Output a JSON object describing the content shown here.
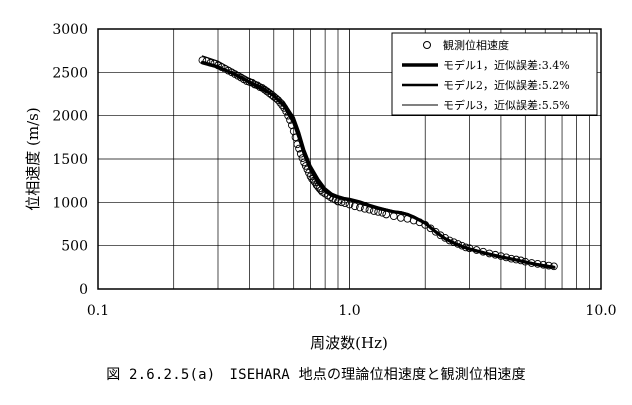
{
  "chart_data": {
    "type": "line",
    "xlabel": "周波数(Hz)",
    "ylabel": "位相速度 (m/s)",
    "xscale": "log",
    "xlim": [
      0.1,
      10.0
    ],
    "ylim": [
      0,
      3000
    ],
    "xticks": [
      "0.1",
      "1.0",
      "10.0"
    ],
    "yticks": [
      "0",
      "500",
      "1000",
      "1500",
      "2000",
      "2500",
      "3000"
    ],
    "grid": true,
    "legend_position": "top-right",
    "series": [
      {
        "name": "観測位相速度",
        "style": "markers",
        "x": [
          0.26,
          0.27,
          0.28,
          0.29,
          0.3,
          0.31,
          0.32,
          0.33,
          0.34,
          0.35,
          0.36,
          0.37,
          0.38,
          0.39,
          0.4,
          0.41,
          0.42,
          0.43,
          0.44,
          0.45,
          0.46,
          0.47,
          0.48,
          0.49,
          0.5,
          0.51,
          0.52,
          0.53,
          0.54,
          0.55,
          0.56,
          0.57,
          0.58,
          0.59,
          0.6,
          0.61,
          0.62,
          0.63,
          0.64,
          0.65,
          0.66,
          0.67,
          0.68,
          0.69,
          0.7,
          0.71,
          0.72,
          0.73,
          0.74,
          0.75,
          0.76,
          0.77,
          0.78,
          0.8,
          0.82,
          0.84,
          0.86,
          0.88,
          0.9,
          0.93,
          0.96,
          1.0,
          1.05,
          1.1,
          1.15,
          1.2,
          1.25,
          1.3,
          1.35,
          1.4,
          1.5,
          1.6,
          1.7,
          1.8,
          1.9,
          2.0,
          2.1,
          2.2,
          2.3,
          2.4,
          2.5,
          2.6,
          2.7,
          2.8,
          2.9,
          3.0,
          3.2,
          3.4,
          3.6,
          3.8,
          4.0,
          4.2,
          4.4,
          4.6,
          4.8,
          5.0,
          5.3,
          5.6,
          5.9,
          6.2,
          6.5
        ],
        "y": [
          2640,
          2630,
          2610,
          2600,
          2580,
          2560,
          2540,
          2520,
          2500,
          2480,
          2460,
          2440,
          2420,
          2400,
          2390,
          2380,
          2360,
          2350,
          2330,
          2320,
          2300,
          2280,
          2260,
          2240,
          2220,
          2200,
          2180,
          2150,
          2120,
          2090,
          2050,
          2000,
          1950,
          1890,
          1820,
          1750,
          1670,
          1620,
          1560,
          1510,
          1460,
          1420,
          1380,
          1340,
          1300,
          1270,
          1250,
          1230,
          1200,
          1180,
          1160,
          1140,
          1120,
          1100,
          1080,
          1060,
          1040,
          1030,
          1010,
          1000,
          990,
          975,
          955,
          940,
          925,
          915,
          900,
          890,
          880,
          860,
          840,
          820,
          810,
          790,
          770,
          740,
          700,
          660,
          620,
          590,
          560,
          540,
          520,
          500,
          480,
          470,
          450,
          430,
          410,
          395,
          380,
          365,
          350,
          340,
          330,
          315,
          300,
          290,
          280,
          270,
          262
        ]
      },
      {
        "name": "モデル1，近似誤差:3.4%",
        "style": "thick",
        "x": [
          0.26,
          0.3,
          0.35,
          0.4,
          0.45,
          0.5,
          0.55,
          0.6,
          0.63,
          0.66,
          0.7,
          0.75,
          0.8,
          0.85,
          0.9,
          0.95,
          1.0,
          1.1,
          1.2,
          1.3,
          1.4,
          1.5,
          1.6,
          1.7,
          1.8,
          2.0,
          2.2,
          2.4,
          2.6,
          2.8,
          3.0,
          3.5,
          4.0,
          4.5,
          5.0,
          5.5,
          6.0,
          6.5
        ],
        "y": [
          2610,
          2560,
          2480,
          2390,
          2320,
          2230,
          2110,
          1920,
          1750,
          1560,
          1380,
          1230,
          1130,
          1080,
          1060,
          1040,
          1030,
          1000,
          960,
          930,
          910,
          890,
          880,
          860,
          830,
          760,
          660,
          580,
          530,
          490,
          460,
          410,
          370,
          340,
          310,
          285,
          265,
          250
        ]
      },
      {
        "name": "モデル2，近似誤差:5.2%",
        "style": "thick",
        "x": [
          0.26,
          0.3,
          0.35,
          0.4,
          0.45,
          0.5,
          0.55,
          0.6,
          0.63,
          0.66,
          0.7,
          0.75,
          0.8,
          0.85,
          0.9,
          0.95,
          1.0,
          1.1,
          1.2,
          1.3,
          1.4,
          1.5,
          1.6,
          1.7,
          1.8,
          2.0,
          2.2,
          2.4,
          2.6,
          2.8,
          3.0,
          3.5,
          4.0,
          4.5,
          5.0,
          5.5,
          6.0,
          6.5
        ],
        "y": [
          2620,
          2570,
          2470,
          2380,
          2300,
          2230,
          2130,
          1980,
          1810,
          1610,
          1420,
          1270,
          1160,
          1100,
          1070,
          1050,
          1040,
          1010,
          970,
          940,
          915,
          895,
          885,
          865,
          835,
          765,
          665,
          585,
          535,
          495,
          465,
          415,
          375,
          345,
          315,
          290,
          270,
          255
        ]
      },
      {
        "name": "モデル3，近似誤差:5.5%",
        "style": "thin",
        "x": [
          0.26,
          0.3,
          0.35,
          0.4,
          0.45,
          0.5,
          0.55,
          0.6,
          0.63,
          0.66,
          0.7,
          0.75,
          0.8,
          0.85,
          0.9,
          0.95,
          1.0,
          1.1,
          1.2,
          1.3,
          1.4,
          1.5,
          1.6,
          1.7,
          1.8,
          2.0,
          2.2,
          2.4,
          2.6,
          2.8,
          3.0,
          3.5,
          4.0,
          4.5,
          5.0,
          5.5,
          6.0,
          6.5
        ],
        "y": [
          2690,
          2630,
          2520,
          2430,
          2350,
          2270,
          2160,
          1990,
          1800,
          1590,
          1410,
          1260,
          1150,
          1090,
          1070,
          1050,
          1035,
          1005,
          965,
          935,
          912,
          892,
          882,
          862,
          832,
          762,
          662,
          582,
          532,
          492,
          462,
          412,
          372,
          342,
          312,
          288,
          268,
          252
        ]
      }
    ]
  },
  "caption": "図 2.6.2.5(a)　ISEHARA 地点の理論位相速度と観測位相速度"
}
